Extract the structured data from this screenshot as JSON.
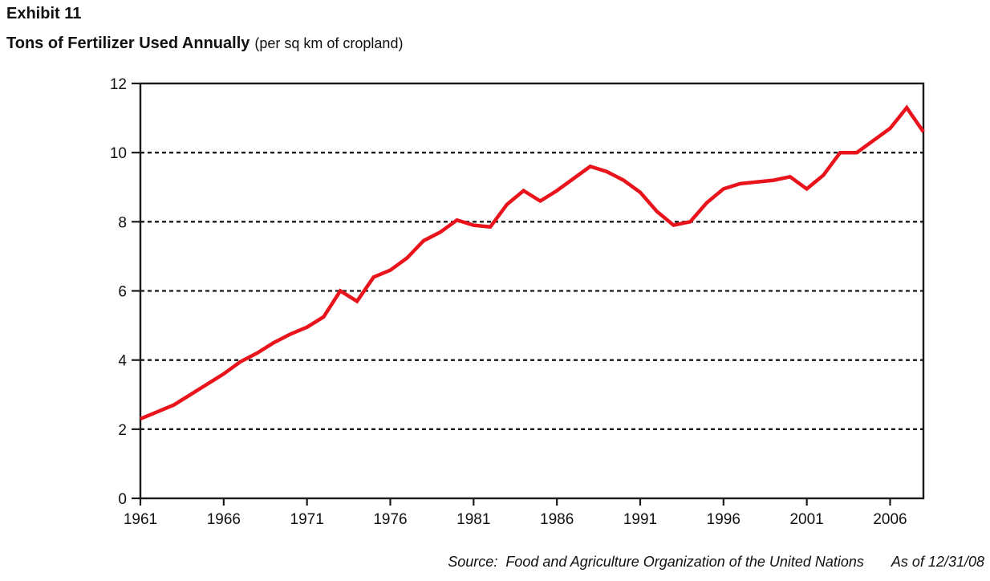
{
  "header": {
    "exhibit": "Exhibit 11",
    "title": "Tons of Fertilizer Used Annually",
    "subtitle": "(per sq km of cropland)"
  },
  "footer": {
    "source": "Source:  Food and Agriculture Organization of the United Nations",
    "as_of": "As of 12/31/08"
  },
  "chart_data": {
    "type": "line",
    "title": "Tons of Fertilizer Used Annually",
    "subtitle": "(per sq km of cropland)",
    "xlabel": "",
    "ylabel": "",
    "xlim": [
      1961,
      2008
    ],
    "ylim": [
      0,
      12
    ],
    "xticks": [
      1961,
      1966,
      1971,
      1976,
      1981,
      1986,
      1991,
      1996,
      2001,
      2006
    ],
    "yticks": [
      0,
      2,
      4,
      6,
      8,
      10,
      12
    ],
    "grid": "horizontal dashed at yticks between 2 and 10",
    "legend": "none",
    "line_color": "#e8131b",
    "axis_color": "#1a1a1a",
    "x": [
      1961,
      1962,
      1963,
      1964,
      1965,
      1966,
      1967,
      1968,
      1969,
      1970,
      1971,
      1972,
      1973,
      1974,
      1975,
      1976,
      1977,
      1978,
      1979,
      1980,
      1981,
      1982,
      1983,
      1984,
      1985,
      1986,
      1987,
      1988,
      1989,
      1990,
      1991,
      1992,
      1993,
      1994,
      1995,
      1996,
      1997,
      1998,
      1999,
      2000,
      2001,
      2002,
      2003,
      2004,
      2005,
      2006,
      2007,
      2008
    ],
    "series": [
      {
        "name": "Tons of fertilizer used annually (per sq km of cropland)",
        "values": [
          2.3,
          2.5,
          2.7,
          3.0,
          3.3,
          3.6,
          3.95,
          4.2,
          4.5,
          4.75,
          4.95,
          5.25,
          6.0,
          5.7,
          6.4,
          6.6,
          6.95,
          7.45,
          7.7,
          8.05,
          7.9,
          7.85,
          8.5,
          8.9,
          8.6,
          8.9,
          9.25,
          9.6,
          9.45,
          9.2,
          8.85,
          8.3,
          7.9,
          8.0,
          8.55,
          8.95,
          9.1,
          9.15,
          9.2,
          9.3,
          8.95,
          9.35,
          10.0,
          10.0,
          10.35,
          10.7,
          11.3,
          10.6
        ]
      }
    ]
  }
}
